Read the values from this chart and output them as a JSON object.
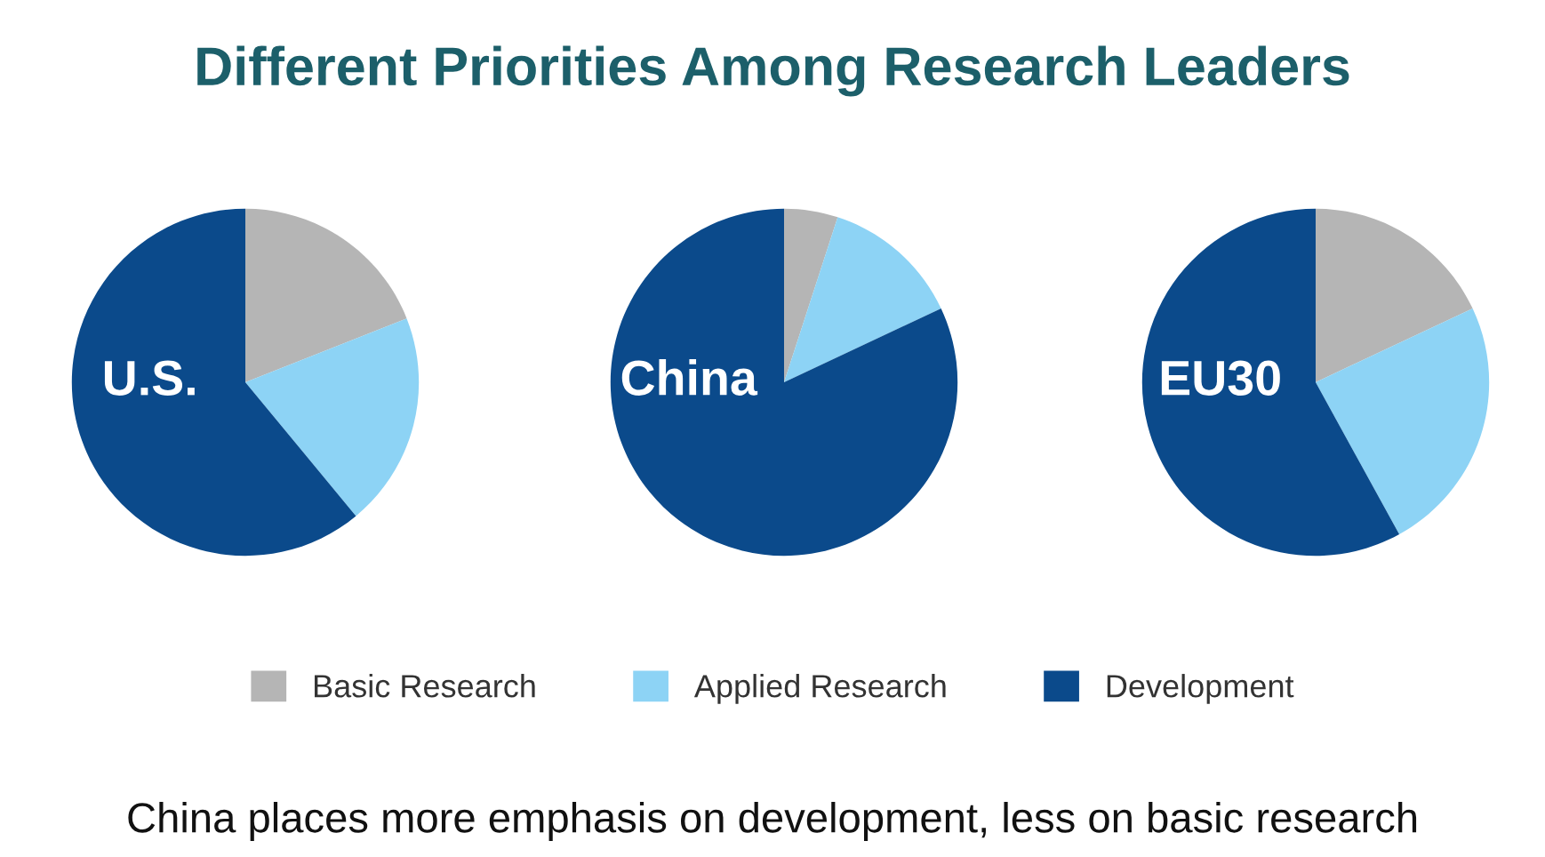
{
  "chart_data": {
    "type": "pie",
    "title": "Different Priorities Among Research Leaders",
    "categories": [
      "Basic Research",
      "Applied Research",
      "Development"
    ],
    "colors": [
      "#b5b5b5",
      "#8dd3f5",
      "#0b4a8b"
    ],
    "legend": "bottom",
    "series": [
      {
        "name": "U.S.",
        "values": [
          19,
          20,
          61
        ]
      },
      {
        "name": "China",
        "values": [
          5,
          13,
          82
        ]
      },
      {
        "name": "EU30",
        "values": [
          18,
          24,
          58
        ]
      }
    ],
    "annotations": [
      "China places more emphasis on development, less on basic research"
    ]
  }
}
